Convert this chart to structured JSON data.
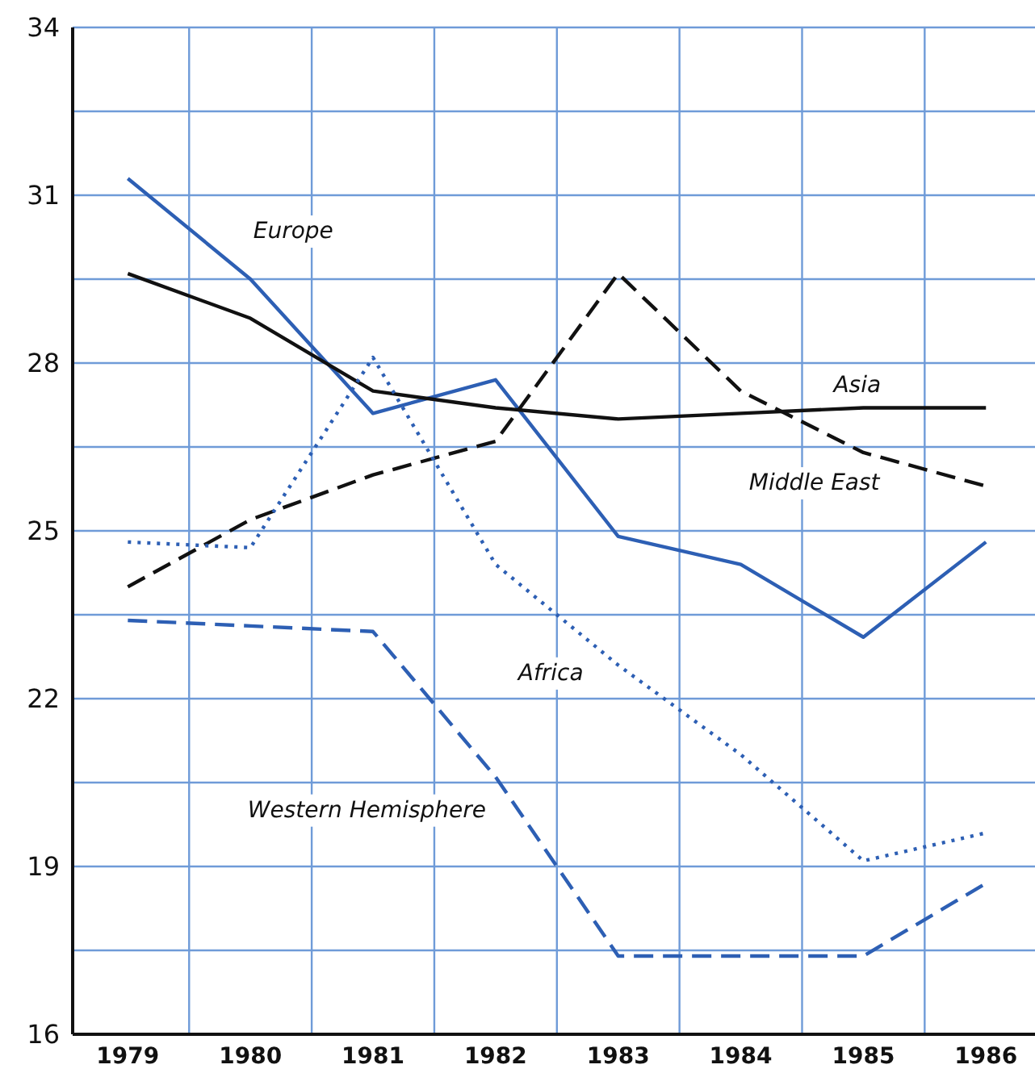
{
  "chart_data": {
    "type": "line",
    "x": [
      1979,
      1980,
      1981,
      1982,
      1983,
      1984,
      1985,
      1986
    ],
    "series": [
      {
        "name": "Europe",
        "color": "#2d5fb4",
        "line_style": "solid",
        "values": [
          31.3,
          29.5,
          27.1,
          27.7,
          24.9,
          24.4,
          23.1,
          24.8
        ]
      },
      {
        "name": "Asia",
        "color": "#111111",
        "line_style": "solid",
        "values": [
          29.6,
          28.8,
          27.5,
          27.2,
          27.0,
          27.1,
          27.2,
          27.2
        ]
      },
      {
        "name": "Middle East",
        "color": "#111111",
        "line_style": "dashed",
        "values": [
          24.0,
          25.2,
          26.0,
          26.6,
          29.6,
          27.5,
          26.4,
          25.8
        ]
      },
      {
        "name": "Africa",
        "color": "#2d5fb4",
        "line_style": "dotted",
        "values": [
          24.8,
          24.7,
          28.1,
          24.4,
          22.6,
          21.0,
          19.1,
          19.6
        ]
      },
      {
        "name": "Western Hemisphere",
        "color": "#2d5fb4",
        "line_style": "dashed",
        "values": [
          23.4,
          23.3,
          23.2,
          20.6,
          17.4,
          17.4,
          17.4,
          18.7
        ]
      }
    ],
    "xlim": [
      1978.55,
      1986.4
    ],
    "xticks": [
      1979,
      {
        "value": 1979.5,
        "label": null
      },
      1980,
      {
        "value": 1980.5,
        "label": null
      },
      1981,
      {
        "value": 1981.5,
        "label": null
      },
      1982,
      {
        "value": 1982.5,
        "label": null
      },
      1983,
      {
        "value": 1983.5,
        "label": null
      },
      1984,
      {
        "value": 1984.5,
        "label": null
      },
      1985,
      {
        "value": 1985.5,
        "label": null
      },
      1986
    ],
    "ylim": [
      16,
      34
    ],
    "yticks": [
      16,
      {
        "value": 17.5,
        "label": null
      },
      19,
      {
        "value": 20.5,
        "label": null
      },
      22,
      {
        "value": 23.5,
        "label": null
      },
      25,
      {
        "value": 26.5,
        "label": null
      },
      28,
      {
        "value": 29.5,
        "label": null
      },
      31,
      {
        "value": 32.5,
        "label": null
      },
      34
    ],
    "grid": true,
    "marker": "none"
  }
}
